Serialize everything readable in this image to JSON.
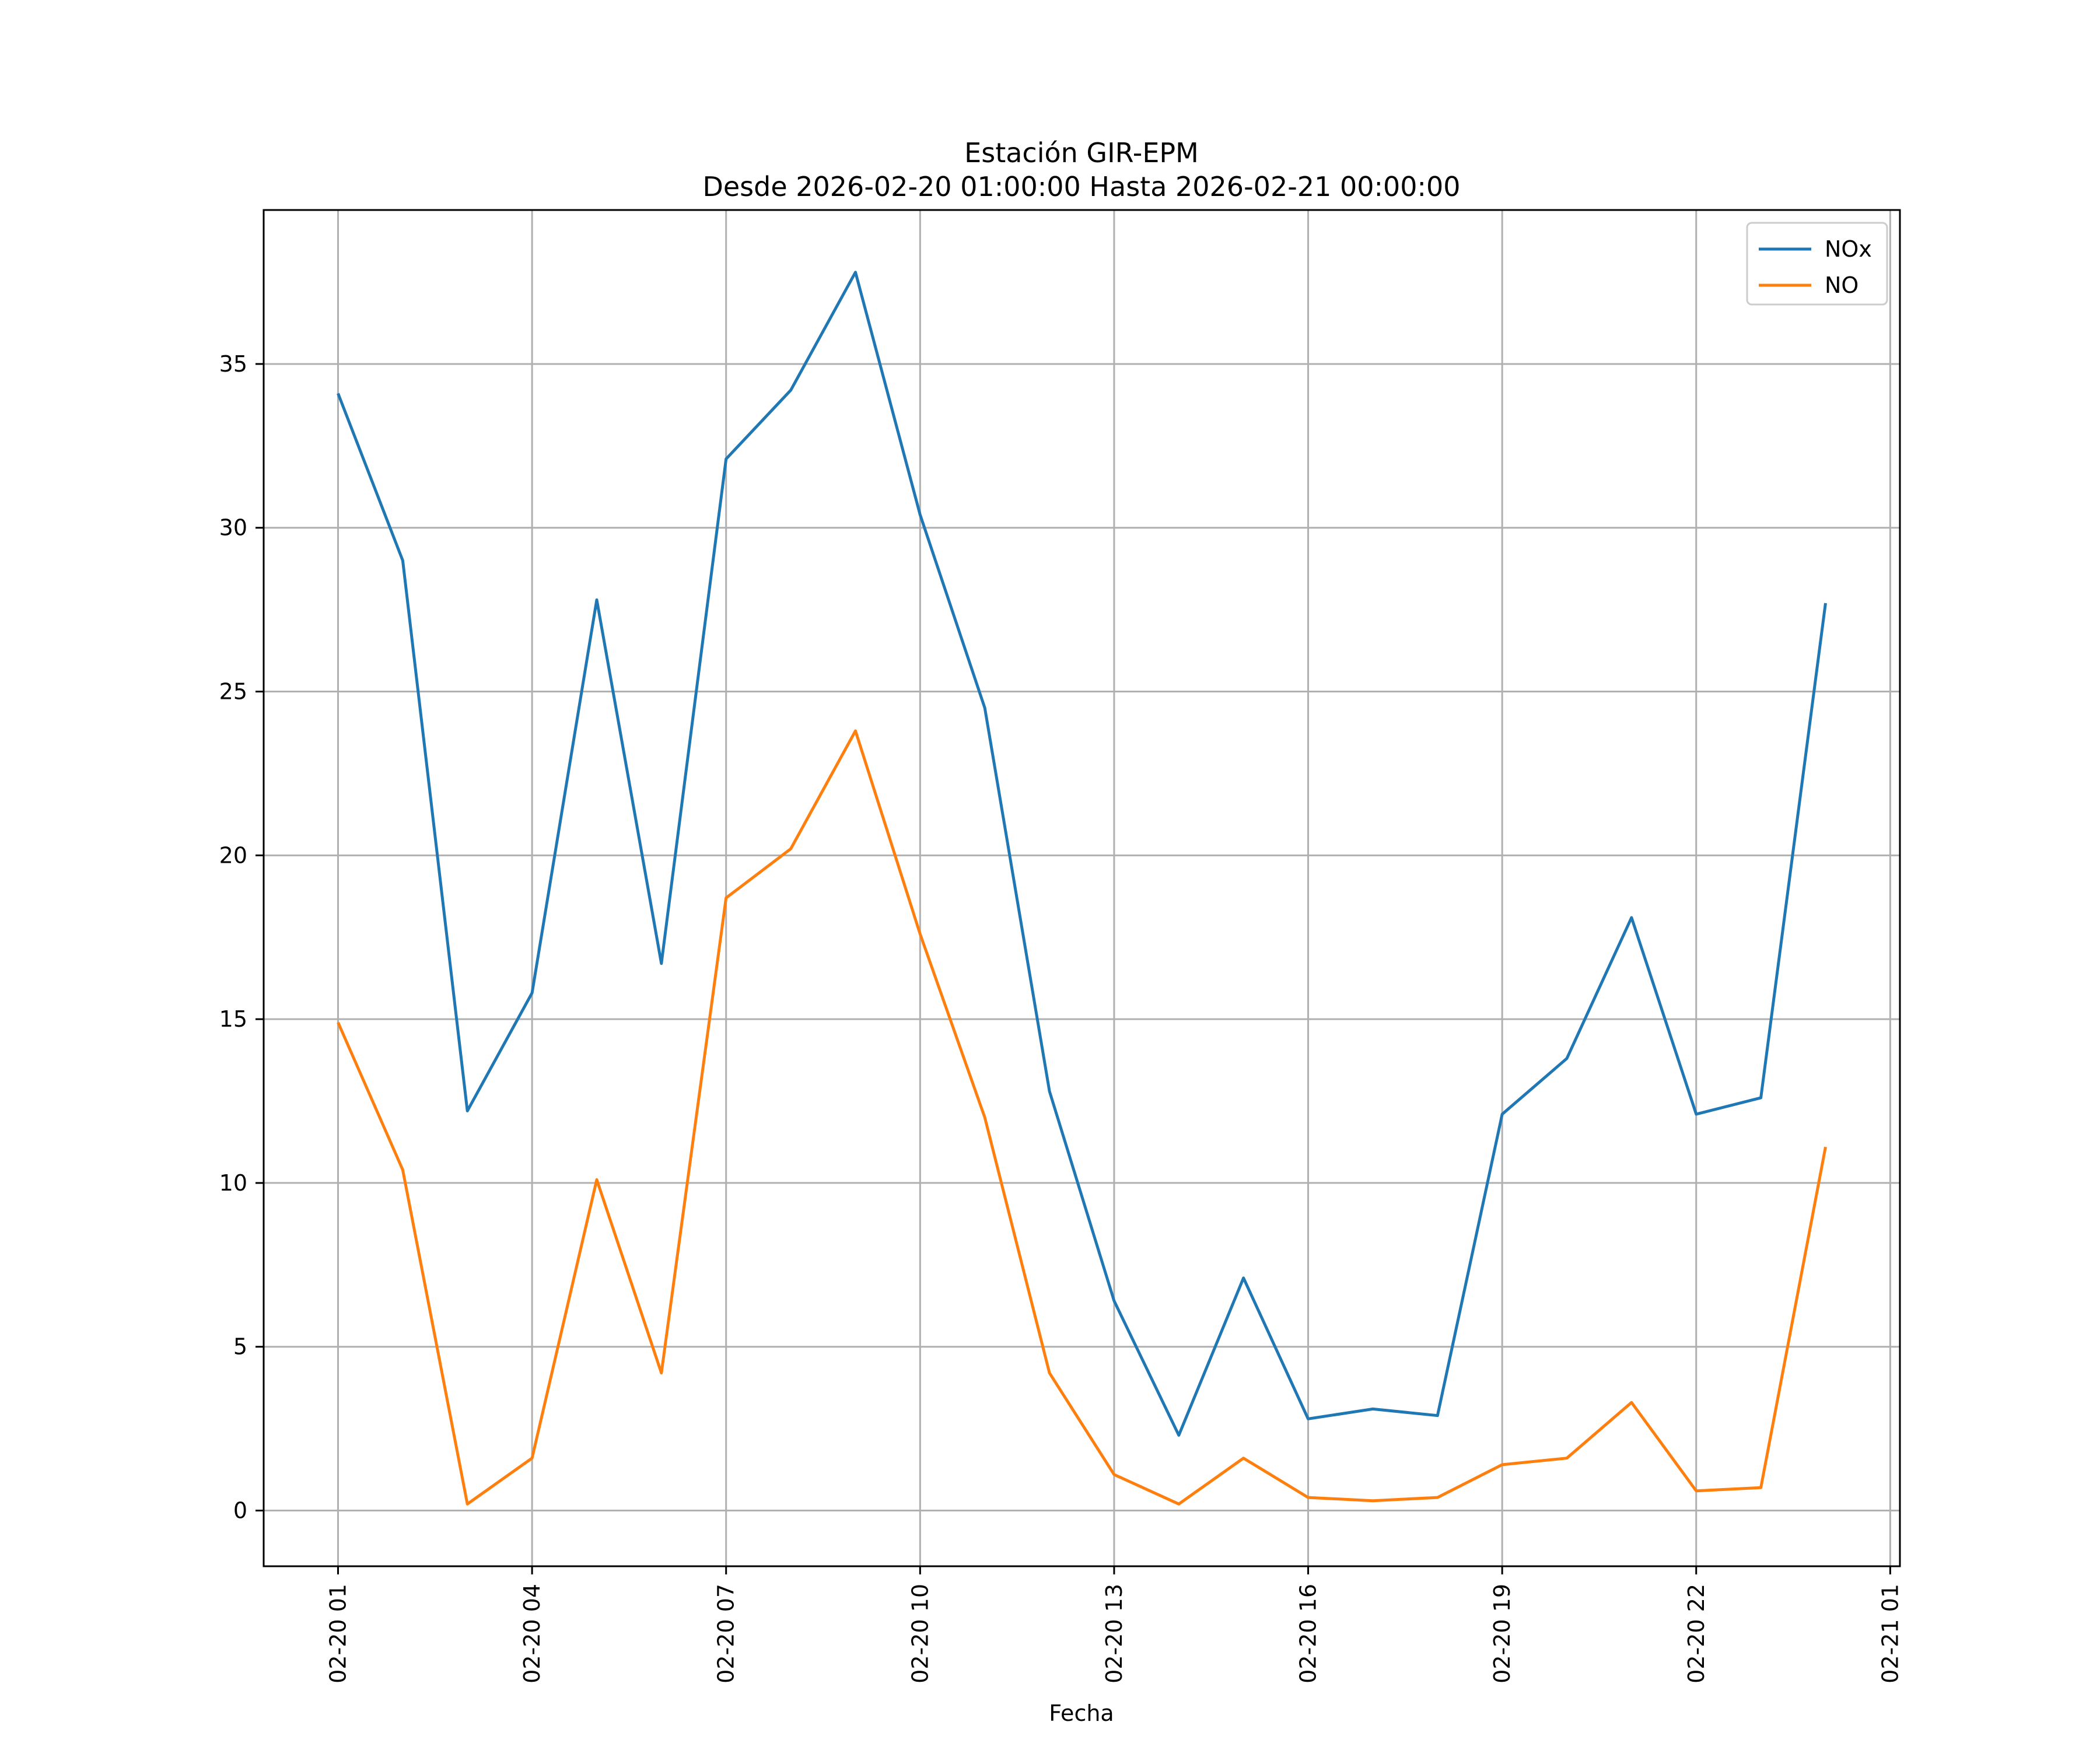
{
  "chart_data": {
    "type": "line",
    "title": "Estación GIR-EPM",
    "subtitle": "Desde 2026-02-20 01:00:00 Hasta 2026-02-21 00:00:00",
    "xlabel": "Fecha",
    "ylabel": "",
    "x": [
      "2026-02-20 01:00",
      "2026-02-20 02:00",
      "2026-02-20 03:00",
      "2026-02-20 04:00",
      "2026-02-20 05:00",
      "2026-02-20 06:00",
      "2026-02-20 07:00",
      "2026-02-20 08:00",
      "2026-02-20 09:00",
      "2026-02-20 10:00",
      "2026-02-20 11:00",
      "2026-02-20 12:00",
      "2026-02-20 13:00",
      "2026-02-20 14:00",
      "2026-02-20 15:00",
      "2026-02-20 16:00",
      "2026-02-20 17:00",
      "2026-02-20 18:00",
      "2026-02-20 19:00",
      "2026-02-20 20:00",
      "2026-02-20 21:00",
      "2026-02-20 22:00",
      "2026-02-20 23:00",
      "2026-02-21 00:00"
    ],
    "series": [
      {
        "name": "NOx",
        "color": "#1f77b4",
        "values": [
          34.1,
          29.0,
          12.2,
          15.8,
          27.8,
          16.7,
          32.1,
          34.2,
          37.8,
          30.4,
          24.5,
          12.8,
          6.4,
          2.3,
          7.1,
          2.8,
          3.1,
          2.9,
          12.1,
          13.8,
          18.1,
          12.1,
          12.6,
          27.7
        ]
      },
      {
        "name": "NO",
        "color": "#ff7f0e",
        "values": [
          14.9,
          10.4,
          0.2,
          1.6,
          10.1,
          4.2,
          18.7,
          20.2,
          23.8,
          17.6,
          12.0,
          4.2,
          1.1,
          0.2,
          1.6,
          0.4,
          0.3,
          0.4,
          1.4,
          1.6,
          3.3,
          0.6,
          0.7,
          11.1
        ]
      }
    ],
    "xticks": [
      "02-20 01",
      "02-20 04",
      "02-20 07",
      "02-20 10",
      "02-20 13",
      "02-20 16",
      "02-20 19",
      "02-20 22",
      "02-21 01"
    ],
    "yticks": [
      "0",
      "5",
      "10",
      "15",
      "20",
      "25",
      "30",
      "35"
    ],
    "ylim": [
      -1.7,
      39.7
    ],
    "xlim": [
      "2026-02-19 23:51",
      "2026-02-21 01:09"
    ],
    "grid": true,
    "legend_position": "top-right"
  }
}
